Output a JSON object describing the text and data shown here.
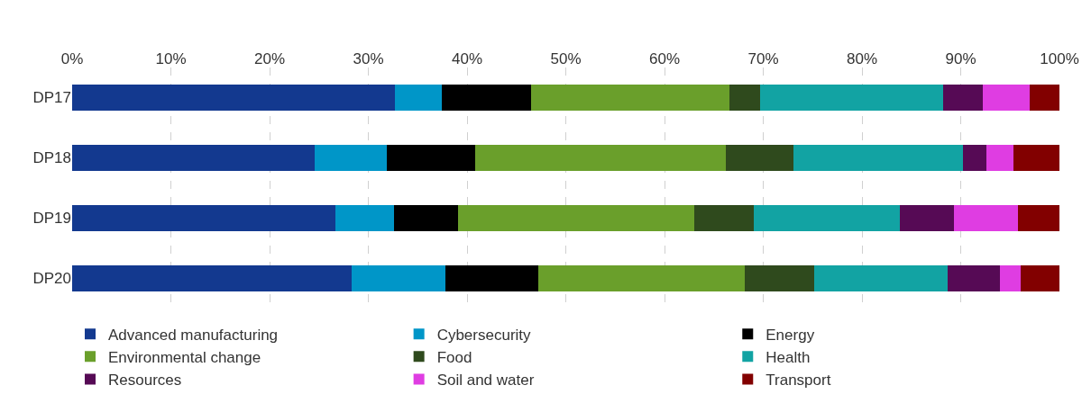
{
  "chart_data": {
    "type": "bar",
    "orientation": "horizontal",
    "stacked": true,
    "categories": [
      "DP17",
      "DP18",
      "DP19",
      "DP20"
    ],
    "series": [
      {
        "name": "Advanced manufacturing",
        "color": "#13398f",
        "values": [
          32.7,
          24.6,
          26.7,
          28.3
        ]
      },
      {
        "name": "Cybersecurity",
        "color": "#0096c8",
        "values": [
          4.7,
          7.3,
          5.9,
          9.5
        ]
      },
      {
        "name": "Energy",
        "color": "#000000",
        "values": [
          9.1,
          8.9,
          6.5,
          9.4
        ]
      },
      {
        "name": "Environmental change",
        "color": "#6a9f2b",
        "values": [
          20.1,
          25.4,
          23.9,
          20.9
        ]
      },
      {
        "name": "Food",
        "color": "#2f4a1d",
        "values": [
          3.1,
          6.9,
          6.0,
          7.1
        ]
      },
      {
        "name": "Health",
        "color": "#12a3a3",
        "values": [
          18.5,
          17.1,
          14.8,
          13.5
        ]
      },
      {
        "name": "Resources",
        "color": "#560a55",
        "values": [
          4.0,
          2.4,
          5.5,
          5.3
        ]
      },
      {
        "name": "Soil and water",
        "color": "#df3de2",
        "values": [
          4.8,
          2.7,
          6.5,
          2.1
        ]
      },
      {
        "name": "Transport",
        "color": "#820000",
        "values": [
          3.0,
          4.7,
          4.2,
          3.9
        ]
      }
    ],
    "xlim": [
      0,
      100
    ],
    "xticks": [
      {
        "value": 0,
        "label": "0%"
      },
      {
        "value": 10,
        "label": "10%"
      },
      {
        "value": 20,
        "label": "20%"
      },
      {
        "value": 30,
        "label": "30%"
      },
      {
        "value": 40,
        "label": "40%"
      },
      {
        "value": 50,
        "label": "50%"
      },
      {
        "value": 60,
        "label": "60%"
      },
      {
        "value": 70,
        "label": "70%"
      },
      {
        "value": 80,
        "label": "80%"
      },
      {
        "value": 90,
        "label": "90%"
      },
      {
        "value": 100,
        "label": "100%"
      }
    ],
    "grid": "x",
    "legend": "bottom"
  }
}
